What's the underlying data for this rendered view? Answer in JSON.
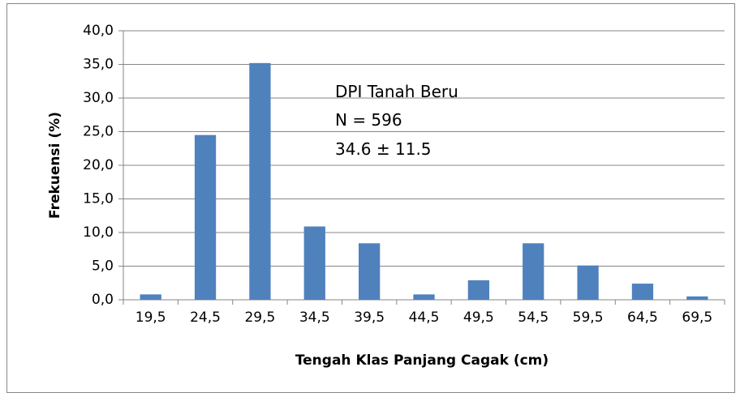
{
  "chart_data": {
    "type": "bar",
    "categories": [
      "19,5",
      "24,5",
      "29,5",
      "34,5",
      "39,5",
      "44,5",
      "49,5",
      "54,5",
      "59,5",
      "64,5",
      "69,5"
    ],
    "values": [
      0.8,
      24.5,
      35.2,
      10.9,
      8.4,
      0.8,
      2.9,
      8.4,
      5.1,
      2.4,
      0.5
    ],
    "color": "#4f81bd",
    "xlabel": "Tengah Klas Panjang Cagak  (cm)",
    "ylabel": "Frekuensi  (%)",
    "annotations": [
      "DPI Tanah Beru",
      "N = 596",
      "34.6 ± 11.5"
    ],
    "ylim": [
      0,
      40
    ],
    "yticks": [
      {
        "value": 0,
        "label": "0,0"
      },
      {
        "value": 5,
        "label": "5,0"
      },
      {
        "value": 10,
        "label": "10,0"
      },
      {
        "value": 15,
        "label": "15,0"
      },
      {
        "value": 20,
        "label": "20,0"
      },
      {
        "value": 25,
        "label": "25,0"
      },
      {
        "value": 30,
        "label": "30,0"
      },
      {
        "value": 35,
        "label": "35,0"
      },
      {
        "value": 40,
        "label": "40,0"
      }
    ],
    "grid": true
  }
}
